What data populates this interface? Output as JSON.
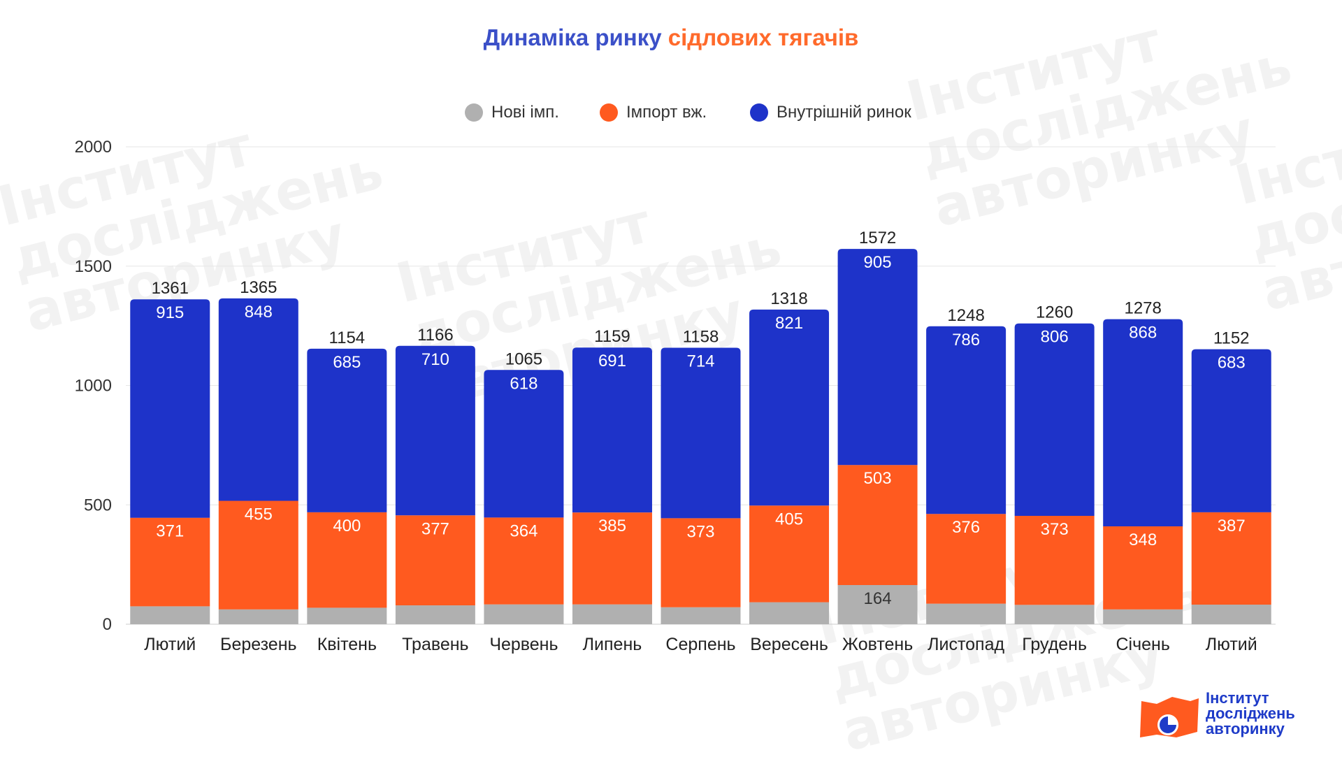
{
  "title": {
    "part1": "Динаміка ринку",
    "part2": "сідлових тягачів"
  },
  "colors": {
    "new_import": "#b0b0b0",
    "used_import": "#ff5a1f",
    "domestic": "#1e33c9",
    "title_blue": "#3b50c8",
    "title_orange": "#ff6a2b"
  },
  "logo": {
    "line1": "Інститут",
    "line2": "досліджень",
    "line3": "авторинку"
  },
  "watermark_text": "Інститут\nдосліджень\nавторинку",
  "chart_data": {
    "type": "bar",
    "stacked": true,
    "categories": [
      "Лютий",
      "Березень",
      "Квітень",
      "Травень",
      "Червень",
      "Липень",
      "Серпень",
      "Вересень",
      "Жовтень",
      "Листопад",
      "Грудень",
      "Січень",
      "Лютий"
    ],
    "series": [
      {
        "name": "Нові імп.",
        "color": "#b0b0b0",
        "values": [
          75,
          62,
          69,
          79,
          83,
          83,
          71,
          92,
          164,
          86,
          81,
          62,
          82
        ],
        "labels": [
          "",
          "",
          "",
          "",
          "",
          "",
          "",
          "",
          "164",
          "",
          "",
          "",
          ""
        ]
      },
      {
        "name": "Імпорт вж.",
        "color": "#ff5a1f",
        "values": [
          371,
          455,
          400,
          377,
          364,
          385,
          373,
          405,
          503,
          376,
          373,
          348,
          387
        ],
        "labels": [
          "371",
          "455",
          "400",
          "377",
          "364",
          "385",
          "373",
          "405",
          "503",
          "376",
          "373",
          "348",
          "387"
        ]
      },
      {
        "name": "Внутрішній ринок",
        "color": "#1e33c9",
        "values": [
          915,
          848,
          685,
          710,
          618,
          691,
          714,
          821,
          905,
          786,
          806,
          868,
          683
        ],
        "labels": [
          "915",
          "848",
          "685",
          "710",
          "618",
          "691",
          "714",
          "821",
          "905",
          "786",
          "806",
          "868",
          "683"
        ]
      }
    ],
    "totals": [
      "1361",
      "1365",
      "1154",
      "1166",
      "1065",
      "1159",
      "1158",
      "1318",
      "1572",
      "1248",
      "1260",
      "1278",
      "1152"
    ],
    "ylim": [
      0,
      2000
    ],
    "yticks": [
      "0",
      "500",
      "1000",
      "1500",
      "2000"
    ],
    "grid": true,
    "legend_position": "top-center"
  }
}
